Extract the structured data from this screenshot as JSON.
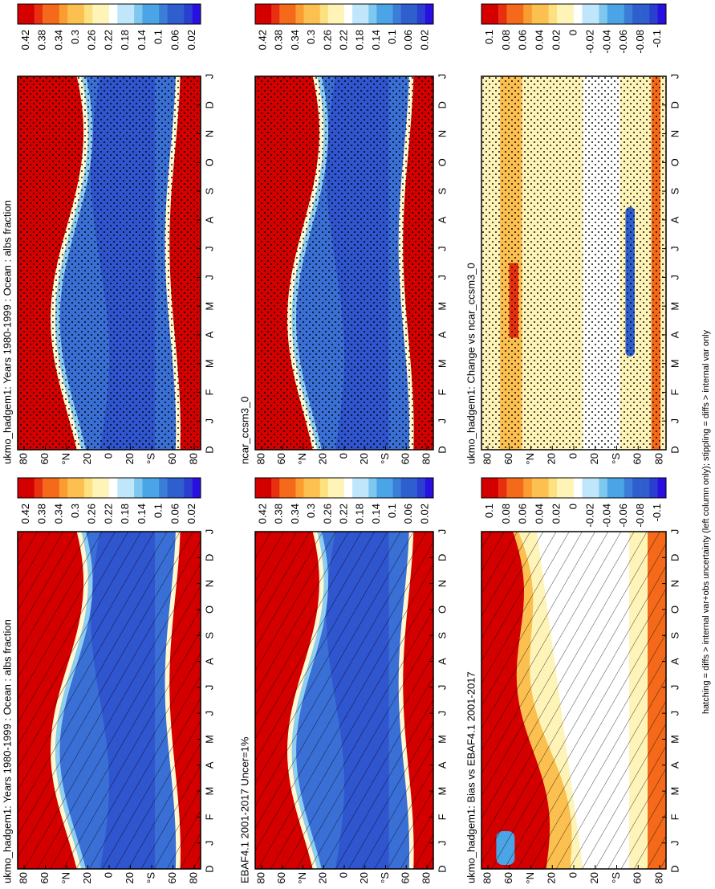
{
  "months": [
    "D",
    "J",
    "F",
    "M",
    "A",
    "M",
    "J",
    "J",
    "A",
    "S",
    "O",
    "N",
    "D",
    "J"
  ],
  "latitudes": [
    "80",
    "60",
    "°N",
    "20",
    "0",
    "20",
    "°S",
    "60",
    "80"
  ],
  "panels": [
    {
      "title": "ukmo_hadgem1: Years 1980-1999 : Ocean : albs fraction",
      "colorbar": [
        "0.42",
        "0.38",
        "0.34",
        "0.3",
        "0.26",
        "0.22",
        "0.18",
        "0.14",
        "0.1",
        "0.06",
        "0.02"
      ]
    },
    {
      "title": "ukmo_hadgem1: Years 1980-1999 : Ocean : albs fraction",
      "colorbar": [
        "0.42",
        "0.38",
        "0.34",
        "0.3",
        "0.26",
        "0.22",
        "0.18",
        "0.14",
        "0.1",
        "0.06",
        "0.02"
      ]
    },
    {
      "title": "EBAF4.1 2001-2017 Uncer=1%",
      "colorbar": [
        "0.42",
        "0.38",
        "0.34",
        "0.3",
        "0.26",
        "0.22",
        "0.18",
        "0.14",
        "0.1",
        "0.06",
        "0.02"
      ]
    },
    {
      "title": "ncar_ccsm3_0",
      "colorbar": [
        "0.42",
        "0.38",
        "0.34",
        "0.3",
        "0.26",
        "0.22",
        "0.18",
        "0.14",
        "0.1",
        "0.06",
        "0.02"
      ]
    },
    {
      "title": "ukmo_hadgem1: Bias vs EBAF4.1 2001-2017",
      "colorbar": [
        "0.1",
        "0.08",
        "0.06",
        "0.04",
        "0.02",
        "0",
        "-0.02",
        "-0.04",
        "-0.06",
        "-0.08",
        "-0.1"
      ]
    },
    {
      "title": "ukmo_hadgem1: Change vs ncar_ccsm3_0",
      "colorbar": [
        "0.1",
        "0.08",
        "0.06",
        "0.04",
        "0.02",
        "0",
        "-0.02",
        "-0.04",
        "-0.06",
        "-0.08",
        "-0.1"
      ]
    }
  ],
  "footnote": "hatching = diffs > internal var+obs uncertainty (left column only); stippling = diffs > internal var only"
}
